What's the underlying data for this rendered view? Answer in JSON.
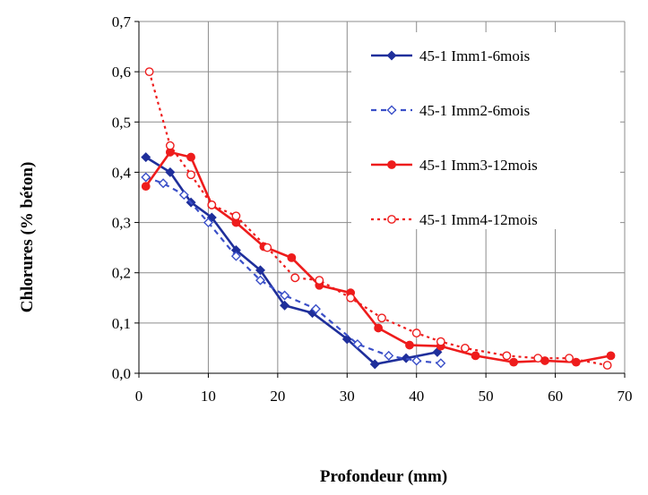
{
  "chart_data": {
    "type": "line",
    "title": "",
    "xlabel": "Profondeur (mm)",
    "ylabel": "Chlorures (% béton)",
    "xlim": [
      0,
      70
    ],
    "ylim": [
      0,
      0.7
    ],
    "xticks": [
      0,
      10,
      20,
      30,
      40,
      50,
      60,
      70
    ],
    "yticks": [
      0,
      0.1,
      0.2,
      0.3,
      0.4,
      0.5,
      0.6,
      0.7
    ],
    "xtick_labels": [
      "0",
      "10",
      "20",
      "30",
      "40",
      "50",
      "60",
      "70"
    ],
    "ytick_labels": [
      "0,0",
      "0,1",
      "0,2",
      "0,3",
      "0,4",
      "0,5",
      "0,6",
      "0,7"
    ],
    "grid": true,
    "legend_position": "top-right",
    "series": [
      {
        "name": "45-1 Imm1-6mois",
        "color": "#1f2f9b",
        "line": "solid",
        "marker": "filled-diamond",
        "x": [
          1.0,
          4.5,
          7.5,
          10.5,
          14.0,
          17.5,
          21.0,
          25.0,
          30.0,
          34.0,
          38.5,
          43.0
        ],
        "y": [
          0.43,
          0.4,
          0.34,
          0.31,
          0.245,
          0.205,
          0.135,
          0.12,
          0.068,
          0.018,
          0.03,
          0.042
        ]
      },
      {
        "name": "45-1 Imm2-6mois",
        "color": "#3a4fc8",
        "line": "dashed",
        "marker": "open-diamond",
        "x": [
          1.0,
          3.5,
          6.5,
          10.0,
          14.0,
          17.5,
          21.0,
          25.5,
          31.5,
          36.0,
          40.0,
          43.5
        ],
        "y": [
          0.39,
          0.378,
          0.355,
          0.3,
          0.233,
          0.185,
          0.155,
          0.128,
          0.058,
          0.035,
          0.025,
          0.02
        ]
      },
      {
        "name": "45-1 Imm3-12mois",
        "color": "#ee1c1c",
        "line": "solid",
        "marker": "filled-circle",
        "x": [
          1.0,
          4.5,
          7.5,
          10.5,
          14.0,
          18.0,
          22.0,
          26.0,
          30.5,
          34.5,
          39.0,
          43.5,
          48.5,
          54.0,
          58.5,
          63.0,
          68.0
        ],
        "y": [
          0.372,
          0.44,
          0.43,
          0.335,
          0.3,
          0.252,
          0.23,
          0.175,
          0.16,
          0.09,
          0.056,
          0.054,
          0.035,
          0.022,
          0.025,
          0.022,
          0.035
        ]
      },
      {
        "name": "45-1 Imm4-12mois",
        "color": "#ee1c1c",
        "line": "dotted",
        "marker": "open-circle",
        "x": [
          1.5,
          4.5,
          7.5,
          10.5,
          14.0,
          18.5,
          22.5,
          26.0,
          30.5,
          35.0,
          40.0,
          43.5,
          47.0,
          53.0,
          57.5,
          62.0,
          67.5
        ],
        "y": [
          0.6,
          0.453,
          0.395,
          0.335,
          0.313,
          0.25,
          0.19,
          0.185,
          0.15,
          0.11,
          0.08,
          0.063,
          0.05,
          0.035,
          0.03,
          0.03,
          0.016
        ]
      }
    ]
  }
}
